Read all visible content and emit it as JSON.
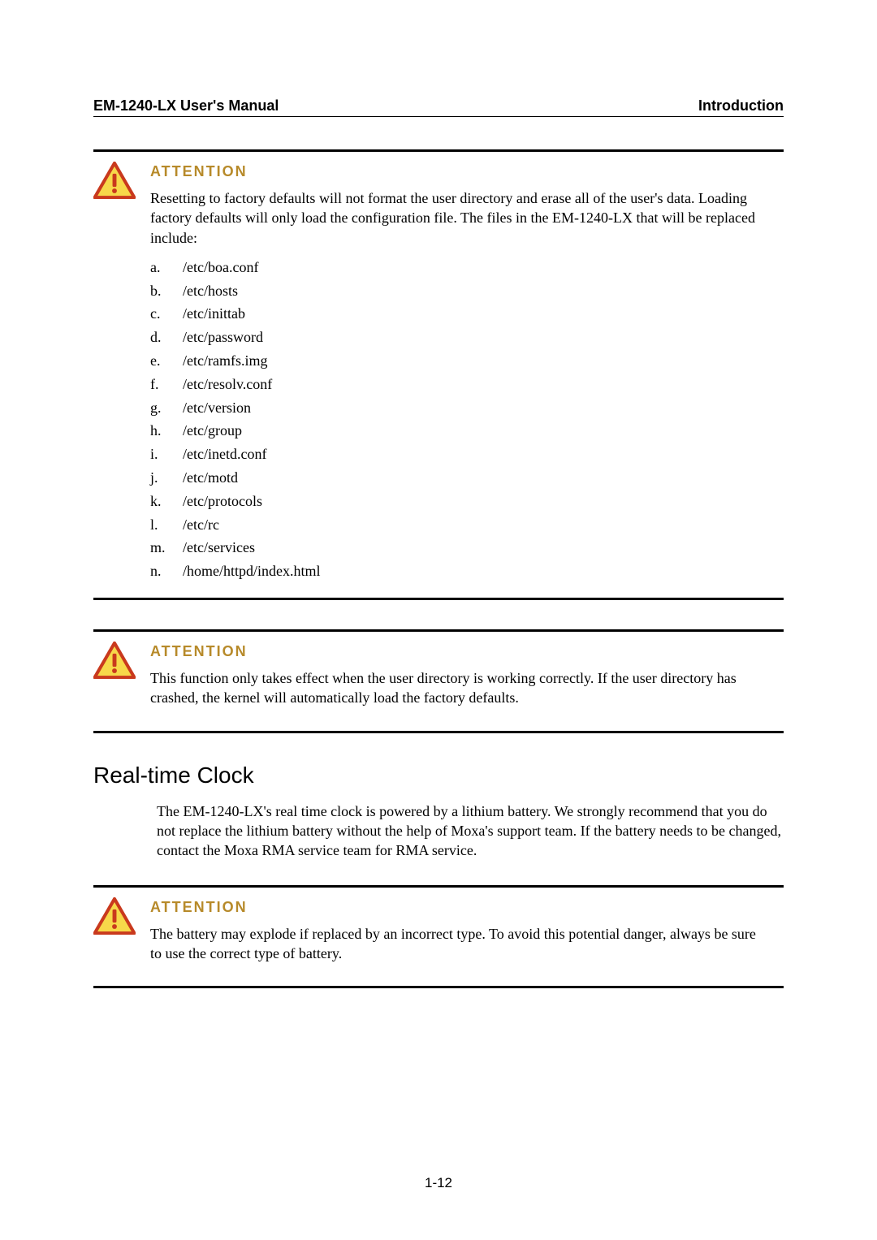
{
  "header": {
    "left": "EM-1240-LX User's Manual",
    "right": "Introduction"
  },
  "attention_title": "ATTENTION",
  "attention1": {
    "text": "Resetting to factory defaults will not format the user directory and erase all of the user's data. Loading factory defaults will only load the configuration file. The files in the EM-1240-LX that will be replaced include:",
    "items": [
      {
        "m": "a.",
        "v": "/etc/boa.conf"
      },
      {
        "m": "b.",
        "v": "/etc/hosts"
      },
      {
        "m": "c.",
        "v": "/etc/inittab"
      },
      {
        "m": "d.",
        "v": "/etc/password"
      },
      {
        "m": "e.",
        "v": "/etc/ramfs.img"
      },
      {
        "m": "f.",
        "v": "/etc/resolv.conf"
      },
      {
        "m": "g.",
        "v": "/etc/version"
      },
      {
        "m": "h.",
        "v": "/etc/group"
      },
      {
        "m": "i.",
        "v": "/etc/inetd.conf"
      },
      {
        "m": "j.",
        "v": "/etc/motd"
      },
      {
        "m": "k.",
        "v": "/etc/protocols"
      },
      {
        "m": "l.",
        "v": "/etc/rc"
      },
      {
        "m": "m.",
        "v": "/etc/services"
      },
      {
        "m": "n.",
        "v": "/home/httpd/index.html"
      }
    ]
  },
  "attention2": {
    "text": "This function only takes effect when the user directory is working correctly. If the user directory has crashed, the kernel will automatically load the factory defaults."
  },
  "section_heading": "Real-time Clock",
  "rtc_para": "The EM-1240-LX's real time clock is powered by a lithium battery. We strongly recommend that you do not replace the lithium battery without the help of Moxa's support team. If the battery needs to be changed, contact the Moxa RMA service team for RMA service.",
  "attention3": {
    "text": "The battery may explode if replaced by an incorrect type. To avoid this potential danger, always be sure to use the correct type of battery."
  },
  "page_number": "1-12",
  "colors": {
    "attention_title": "#b78a2a",
    "icon_border": "#c9391d",
    "icon_fill": "#f7d84a",
    "icon_mark": "#c9391d",
    "text": "#000000",
    "background": "#ffffff"
  },
  "typography": {
    "header_font": "Arial",
    "header_size_pt": 13,
    "body_font": "Times New Roman",
    "body_size_pt": 13,
    "attention_title_size_pt": 13,
    "section_heading_size_pt": 21
  }
}
